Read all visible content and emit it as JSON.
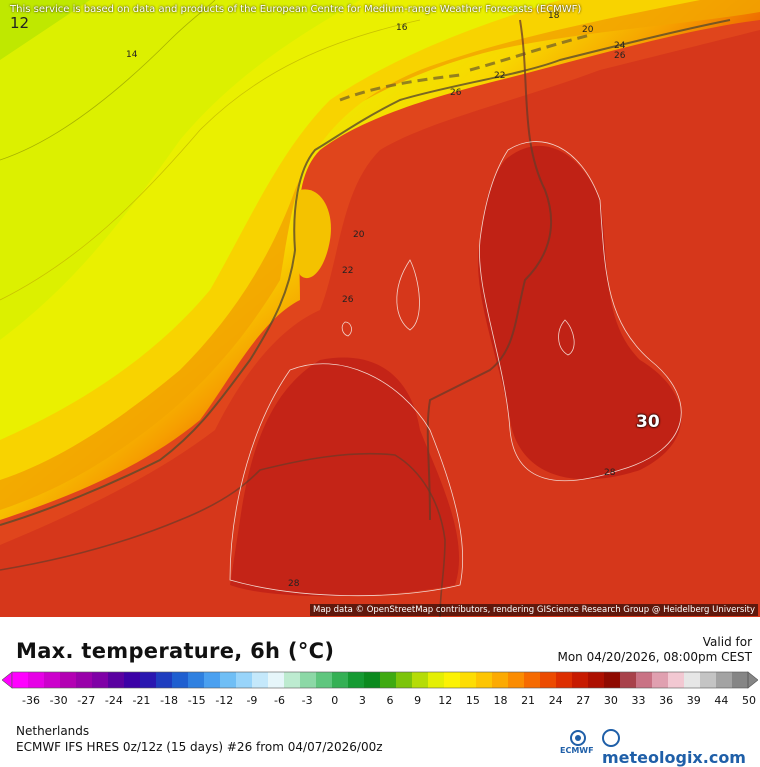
{
  "map": {
    "top_note": "This service is based on data and products of the European Centre for Medium-range Weather Forecasts (ECMWF)",
    "attribution": "Map data © OpenStreetMap contributors, rendering GIScience Research Group @ Heidelberg University",
    "corner_label": "12",
    "highlight_value": "30",
    "contour_labels": [
      "14",
      "16",
      "18",
      "20",
      "22",
      "24",
      "26",
      "28",
      "26",
      "22",
      "20",
      "22",
      "26",
      "28",
      "28"
    ]
  },
  "panel": {
    "title": "Max. temperature, 6h (°C)",
    "valid_label": "Valid for",
    "valid_time": "Mon 04/20/2026, 08:00pm CEST",
    "region": "Netherlands",
    "model": "ECMWF IFS HRES 0z/12z (15 days) #26 from  04/07/2026/00z",
    "brand": "meteologix.com",
    "ecmwf_logo_text": "ECMWF"
  },
  "colorscale": {
    "tick_labels": [
      "-36",
      "-30",
      "-27",
      "-24",
      "-21",
      "-18",
      "-15",
      "-12",
      "-9",
      "-6",
      "-3",
      "0",
      "3",
      "6",
      "9",
      "12",
      "15",
      "18",
      "21",
      "24",
      "27",
      "30",
      "33",
      "36",
      "39",
      "44",
      "50"
    ],
    "colors": [
      "#ff00ff",
      "#e600e6",
      "#cc00cc",
      "#b300b3",
      "#9900aa",
      "#7f00a6",
      "#5a00a0",
      "#3c00a6",
      "#2a17b0",
      "#1f3dbf",
      "#1f5fd0",
      "#2f80e0",
      "#4aa0f0",
      "#6fbef5",
      "#98d4fa",
      "#c4e8fb",
      "#e6f6fa",
      "#bdebd0",
      "#8cd8a6",
      "#5fc67e",
      "#35b055",
      "#169a33",
      "#0c8a1f",
      "#3faa12",
      "#7cc40b",
      "#b5dc07",
      "#e4ef05",
      "#fcf205",
      "#fddd04",
      "#fdc503",
      "#fcaa02",
      "#fb8c01",
      "#f66a00",
      "#ec4a00",
      "#dd2e00",
      "#c71a00",
      "#ad0f00",
      "#8f0a00",
      "#a8414a",
      "#c97284",
      "#e0a0b0",
      "#f2c8d2",
      "#e6e6e6",
      "#c4c4c4",
      "#a3a3a3",
      "#858585"
    ]
  }
}
